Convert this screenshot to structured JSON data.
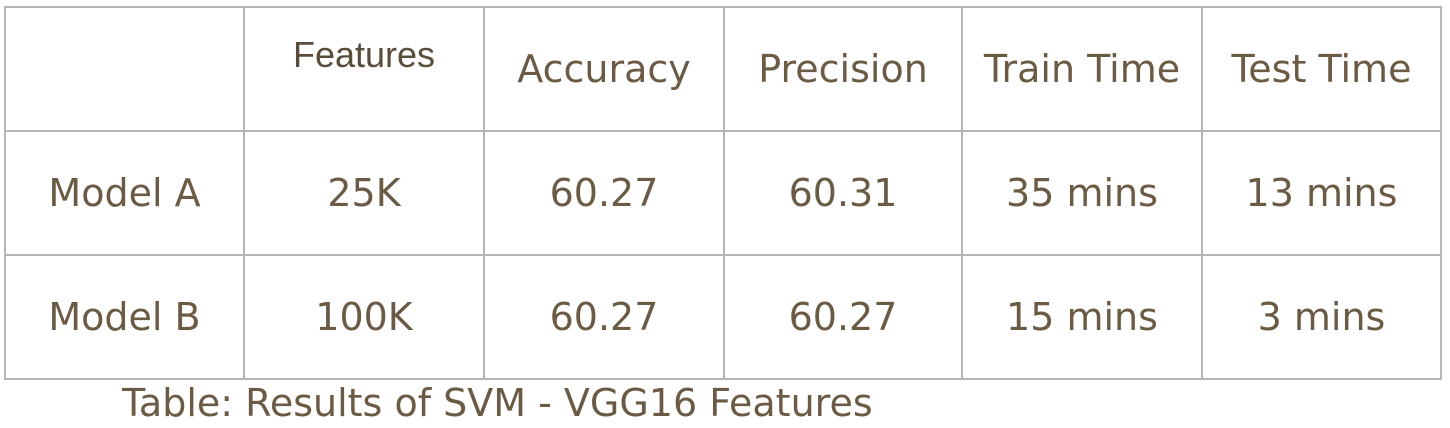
{
  "table": {
    "headers": [
      "",
      "Features",
      "Accuracy",
      "Precision",
      "Train Time",
      "Test Time"
    ],
    "rows": [
      [
        "Model A",
        "25K",
        "60.27",
        "60.31",
        "35 mins",
        "13 mins"
      ],
      [
        "Model B",
        "100K",
        "60.27",
        "60.27",
        "15 mins",
        "3 mins"
      ]
    ]
  },
  "caption": "Table: Results of SVM - VGG16 Features",
  "colors": {
    "text": "#6b5a44",
    "border": "#b5b5b5",
    "background": "#ffffff"
  }
}
